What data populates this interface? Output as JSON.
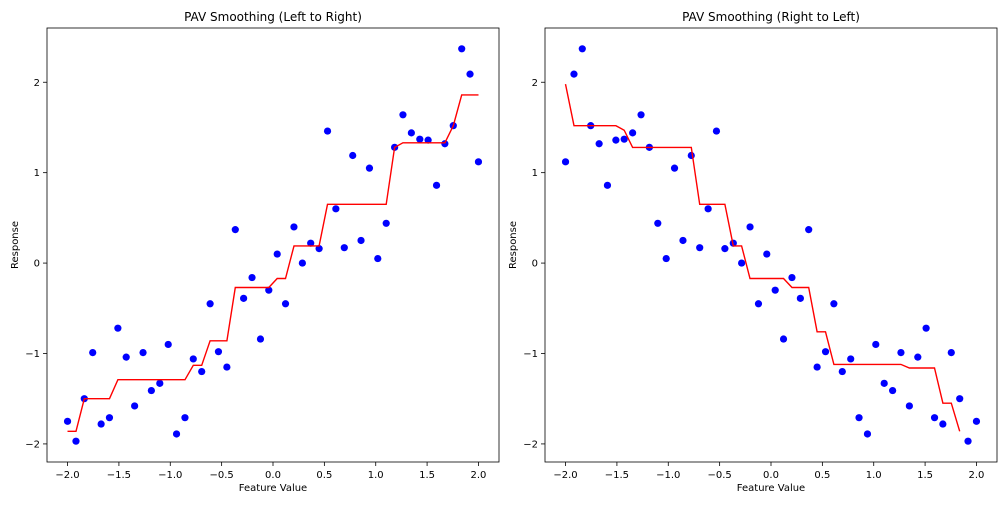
{
  "chart_data": [
    {
      "type": "scatter",
      "title": "PAV Smoothing (Left to Right)",
      "xlabel": "Feature Value",
      "ylabel": "Response",
      "xlim": [
        -2.2,
        2.2
      ],
      "ylim": [
        -2.2,
        2.6
      ],
      "xticks": [
        "−2.0",
        "−1.5",
        "−1.0",
        "−0.5",
        "0.0",
        "0.5",
        "1.0",
        "1.5",
        "2.0"
      ],
      "xtick_values": [
        -2.0,
        -1.5,
        -1.0,
        -0.5,
        0.0,
        0.5,
        1.0,
        1.5,
        2.0
      ],
      "yticks": [
        "−2",
        "−1",
        "0",
        "1",
        "2"
      ],
      "ytick_values": [
        -2,
        -1,
        0,
        1,
        2
      ],
      "grid": false,
      "colors": {
        "points": "#0000ff",
        "line": "#ff0000"
      },
      "points": {
        "x": [
          -2.0,
          -1.918,
          -1.837,
          -1.755,
          -1.673,
          -1.592,
          -1.51,
          -1.429,
          -1.347,
          -1.265,
          -1.184,
          -1.102,
          -1.02,
          -0.939,
          -0.857,
          -0.776,
          -0.694,
          -0.612,
          -0.531,
          -0.449,
          -0.367,
          -0.286,
          -0.204,
          -0.122,
          -0.041,
          0.041,
          0.122,
          0.204,
          0.286,
          0.367,
          0.449,
          0.531,
          0.612,
          0.694,
          0.776,
          0.857,
          0.939,
          1.02,
          1.102,
          1.184,
          1.265,
          1.347,
          1.429,
          1.51,
          1.592,
          1.673,
          1.755,
          1.837,
          1.918,
          2.0
        ],
        "y": [
          -1.75,
          -1.97,
          -1.5,
          -0.99,
          -1.78,
          -1.71,
          -0.72,
          -1.04,
          -1.58,
          -0.99,
          -1.41,
          -1.33,
          -0.9,
          -1.89,
          -1.71,
          -1.06,
          -1.2,
          -0.45,
          -0.98,
          -1.15,
          0.37,
          -0.39,
          -0.16,
          -0.84,
          -0.3,
          0.1,
          -0.45,
          0.4,
          0.0,
          0.22,
          0.16,
          1.46,
          0.6,
          0.17,
          1.19,
          0.25,
          1.05,
          0.05,
          0.44,
          1.28,
          1.64,
          1.44,
          1.37,
          1.36,
          0.86,
          1.32,
          1.52,
          2.37,
          2.09,
          1.12
        ]
      },
      "fit_line": {
        "x": [
          -2.0,
          -1.918,
          -1.837,
          -1.755,
          -1.673,
          -1.592,
          -1.51,
          -1.429,
          -1.347,
          -1.265,
          -1.184,
          -1.102,
          -1.02,
          -0.939,
          -0.857,
          -0.776,
          -0.694,
          -0.612,
          -0.531,
          -0.449,
          -0.367,
          -0.286,
          -0.204,
          -0.122,
          -0.041,
          0.041,
          0.122,
          0.204,
          0.286,
          0.367,
          0.449,
          0.531,
          0.612,
          0.694,
          0.776,
          0.857,
          0.939,
          1.02,
          1.102,
          1.184,
          1.265,
          1.347,
          1.429,
          1.51,
          1.592,
          1.673,
          1.755,
          1.837,
          1.918,
          2.0
        ],
        "y": [
          -1.86,
          -1.86,
          -1.5,
          -1.5,
          -1.5,
          -1.5,
          -1.29,
          -1.29,
          -1.29,
          -1.29,
          -1.29,
          -1.29,
          -1.29,
          -1.29,
          -1.29,
          -1.13,
          -1.13,
          -0.86,
          -0.86,
          -0.86,
          -0.27,
          -0.27,
          -0.27,
          -0.27,
          -0.27,
          -0.17,
          -0.17,
          0.19,
          0.19,
          0.19,
          0.19,
          0.65,
          0.65,
          0.65,
          0.65,
          0.65,
          0.65,
          0.65,
          0.65,
          1.28,
          1.33,
          1.33,
          1.33,
          1.33,
          1.33,
          1.33,
          1.52,
          1.86,
          1.86,
          1.86
        ]
      }
    },
    {
      "type": "scatter",
      "title": "PAV Smoothing (Right to Left)",
      "xlabel": "Feature Value",
      "ylabel": "Response",
      "xlim": [
        -2.2,
        2.2
      ],
      "ylim": [
        -2.2,
        2.6
      ],
      "xticks": [
        "−2.0",
        "−1.5",
        "−1.0",
        "−0.5",
        "0.0",
        "0.5",
        "1.0",
        "1.5",
        "2.0"
      ],
      "xtick_values": [
        -2.0,
        -1.5,
        -1.0,
        -0.5,
        0.0,
        0.5,
        1.0,
        1.5,
        2.0
      ],
      "yticks": [
        "−2",
        "−1",
        "0",
        "1",
        "2"
      ],
      "ytick_values": [
        -2,
        -1,
        0,
        1,
        2
      ],
      "grid": false,
      "colors": {
        "points": "#0000ff",
        "line": "#ff0000"
      },
      "points": {
        "x": [
          -2.0,
          -1.918,
          -1.837,
          -1.755,
          -1.673,
          -1.592,
          -1.51,
          -1.429,
          -1.347,
          -1.265,
          -1.184,
          -1.102,
          -1.02,
          -0.939,
          -0.857,
          -0.776,
          -0.694,
          -0.612,
          -0.531,
          -0.449,
          -0.367,
          -0.286,
          -0.204,
          -0.122,
          -0.041,
          0.041,
          0.122,
          0.204,
          0.286,
          0.367,
          0.449,
          0.531,
          0.612,
          0.694,
          0.776,
          0.857,
          0.939,
          1.02,
          1.102,
          1.184,
          1.265,
          1.347,
          1.429,
          1.51,
          1.592,
          1.673,
          1.755,
          1.837,
          1.918,
          2.0
        ],
        "y": [
          1.12,
          2.09,
          2.37,
          1.52,
          1.32,
          0.86,
          1.36,
          1.37,
          1.44,
          1.64,
          1.28,
          0.44,
          0.05,
          1.05,
          0.25,
          1.19,
          0.17,
          0.6,
          1.46,
          0.16,
          0.22,
          0.0,
          0.4,
          -0.45,
          0.1,
          -0.3,
          -0.84,
          -0.16,
          -0.39,
          0.37,
          -1.15,
          -0.98,
          -0.45,
          -1.2,
          -1.06,
          -1.71,
          -1.89,
          -0.9,
          -1.33,
          -1.41,
          -0.99,
          -1.58,
          -1.04,
          -0.72,
          -1.71,
          -1.78,
          -0.99,
          -1.5,
          -1.97,
          -1.75
        ]
      },
      "fit_line": {
        "x": [
          -2.0,
          -1.918,
          -1.837,
          -1.755,
          -1.673,
          -1.592,
          -1.51,
          -1.429,
          -1.347,
          -1.265,
          -1.184,
          -1.102,
          -1.02,
          -0.939,
          -0.857,
          -0.776,
          -0.694,
          -0.612,
          -0.531,
          -0.449,
          -0.367,
          -0.286,
          -0.204,
          -0.122,
          -0.041,
          0.041,
          0.122,
          0.204,
          0.286,
          0.367,
          0.449,
          0.531,
          0.612,
          0.694,
          0.776,
          0.857,
          0.939,
          1.02,
          1.102,
          1.184,
          1.265,
          1.347,
          1.429,
          1.51,
          1.592,
          1.673,
          1.755,
          1.837
        ],
        "y": [
          1.98,
          1.52,
          1.52,
          1.52,
          1.52,
          1.52,
          1.52,
          1.47,
          1.28,
          1.28,
          1.28,
          1.28,
          1.28,
          1.28,
          1.28,
          1.28,
          0.65,
          0.65,
          0.65,
          0.65,
          0.19,
          0.19,
          -0.17,
          -0.17,
          -0.17,
          -0.17,
          -0.17,
          -0.27,
          -0.27,
          -0.27,
          -0.76,
          -0.76,
          -1.12,
          -1.12,
          -1.12,
          -1.12,
          -1.12,
          -1.12,
          -1.12,
          -1.12,
          -1.12,
          -1.16,
          -1.16,
          -1.16,
          -1.16,
          -1.55,
          -1.55,
          -1.86
        ]
      }
    }
  ]
}
